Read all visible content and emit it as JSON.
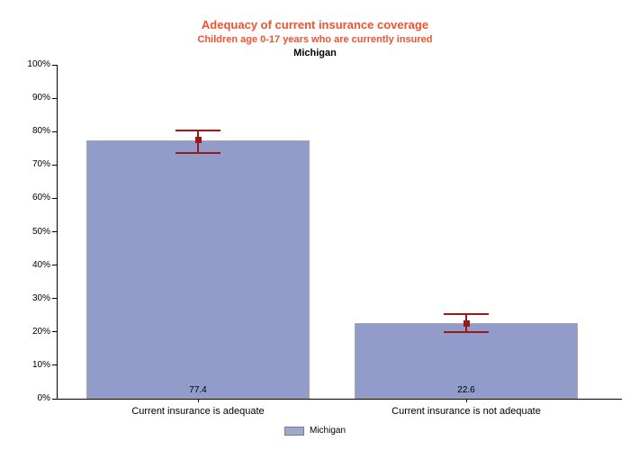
{
  "chart_data": {
    "type": "bar",
    "title": "Adequacy of current insurance coverage",
    "subtitle": "Children age 0-17 years who are currently insured",
    "region": "Michigan",
    "categories": [
      "Current insurance is adequate",
      "Current insurance is not adequate"
    ],
    "series": [
      {
        "name": "Michigan",
        "values": [
          77.4,
          22.6
        ],
        "error_low": [
          73.6,
          19.9
        ],
        "error_high": [
          80.2,
          25.3
        ]
      }
    ],
    "value_labels": [
      "77.4",
      "22.6"
    ],
    "ylim": [
      0,
      100
    ],
    "ytick_step": 10,
    "ytick_suffix": "%",
    "xlabel": "",
    "ylabel": "",
    "grid": false,
    "legend": {
      "position": "bottom",
      "entries": [
        "Michigan"
      ]
    },
    "colors": {
      "title": "#F0512E",
      "subtitle": "#F0512E",
      "bar_fill": "#929CCA",
      "bar_border": "#A6A6A6",
      "error_bar": "#9A1A1B",
      "legend_swatch_fill": "#9FA9D0",
      "axis": "#000000"
    }
  }
}
